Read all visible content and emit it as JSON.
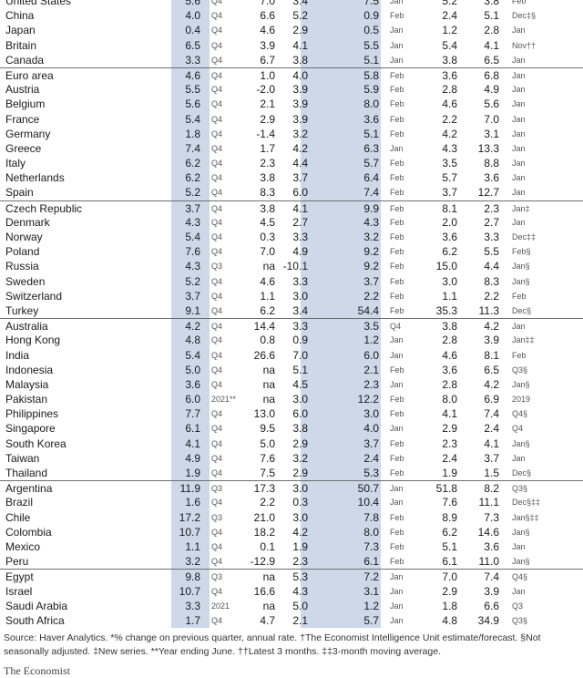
{
  "rows": [
    {
      "country": "United States",
      "v1": "5.6",
      "p1": "Q4",
      "v2": "7.0",
      "v3": "3.4",
      "v4": "7.5",
      "p2": "Jan",
      "v5": "5.2",
      "v6": "3.8",
      "p3": "Feb",
      "sep": false
    },
    {
      "country": "China",
      "v1": "4.0",
      "p1": "Q4",
      "v2": "6.6",
      "v3": "5.2",
      "v4": "0.9",
      "p2": "Feb",
      "v5": "2.4",
      "v6": "5.1",
      "p3": "Dec‡§",
      "sep": false
    },
    {
      "country": "Japan",
      "v1": "0.4",
      "p1": "Q4",
      "v2": "4.6",
      "v3": "2.9",
      "v4": "0.5",
      "p2": "Jan",
      "v5": "1.2",
      "v6": "2.8",
      "p3": "Jan",
      "sep": false
    },
    {
      "country": "Britain",
      "v1": "6.5",
      "p1": "Q4",
      "v2": "3.9",
      "v3": "4.1",
      "v4": "5.5",
      "p2": "Jan",
      "v5": "5.4",
      "v6": "4.1",
      "p3": "Nov††",
      "sep": false
    },
    {
      "country": "Canada",
      "v1": "3.3",
      "p1": "Q4",
      "v2": "6.7",
      "v3": "3.8",
      "v4": "5.1",
      "p2": "Jan",
      "v5": "3.8",
      "v6": "6.5",
      "p3": "Jan",
      "sep": false
    },
    {
      "country": "Euro area",
      "v1": "4.6",
      "p1": "Q4",
      "v2": "1.0",
      "v3": "4.0",
      "v4": "5.8",
      "p2": "Feb",
      "v5": "3.6",
      "v6": "6.8",
      "p3": "Jan",
      "sep": true
    },
    {
      "country": "Austria",
      "v1": "5.5",
      "p1": "Q4",
      "v2": "-2.0",
      "v3": "3.9",
      "v4": "5.9",
      "p2": "Feb",
      "v5": "2.8",
      "v6": "4.9",
      "p3": "Jan",
      "sep": false
    },
    {
      "country": "Belgium",
      "v1": "5.6",
      "p1": "Q4",
      "v2": "2.1",
      "v3": "3.9",
      "v4": "8.0",
      "p2": "Feb",
      "v5": "4.6",
      "v6": "5.6",
      "p3": "Jan",
      "sep": false
    },
    {
      "country": "France",
      "v1": "5.4",
      "p1": "Q4",
      "v2": "2.9",
      "v3": "3.9",
      "v4": "3.6",
      "p2": "Feb",
      "v5": "2.2",
      "v6": "7.0",
      "p3": "Jan",
      "sep": false
    },
    {
      "country": "Germany",
      "v1": "1.8",
      "p1": "Q4",
      "v2": "-1.4",
      "v3": "3.2",
      "v4": "5.1",
      "p2": "Feb",
      "v5": "4.2",
      "v6": "3.1",
      "p3": "Jan",
      "sep": false
    },
    {
      "country": "Greece",
      "v1": "7.4",
      "p1": "Q4",
      "v2": "1.7",
      "v3": "4.2",
      "v4": "6.3",
      "p2": "Jan",
      "v5": "4.3",
      "v6": "13.3",
      "p3": "Jan",
      "sep": false
    },
    {
      "country": "Italy",
      "v1": "6.2",
      "p1": "Q4",
      "v2": "2.3",
      "v3": "4.4",
      "v4": "5.7",
      "p2": "Feb",
      "v5": "3.5",
      "v6": "8.8",
      "p3": "Jan",
      "sep": false
    },
    {
      "country": "Netherlands",
      "v1": "6.2",
      "p1": "Q4",
      "v2": "3.8",
      "v3": "3.7",
      "v4": "6.4",
      "p2": "Feb",
      "v5": "5.7",
      "v6": "3.6",
      "p3": "Jan",
      "sep": false
    },
    {
      "country": "Spain",
      "v1": "5.2",
      "p1": "Q4",
      "v2": "8.3",
      "v3": "6.0",
      "v4": "7.4",
      "p2": "Feb",
      "v5": "3.7",
      "v6": "12.7",
      "p3": "Jan",
      "sep": false
    },
    {
      "country": "Czech Republic",
      "v1": "3.7",
      "p1": "Q4",
      "v2": "3.8",
      "v3": "4.1",
      "v4": "9.9",
      "p2": "Feb",
      "v5": "8.1",
      "v6": "2.3",
      "p3": "Jan‡",
      "sep": true
    },
    {
      "country": "Denmark",
      "v1": "4.3",
      "p1": "Q4",
      "v2": "4.5",
      "v3": "2.7",
      "v4": "4.3",
      "p2": "Feb",
      "v5": "2.0",
      "v6": "2.7",
      "p3": "Jan",
      "sep": false
    },
    {
      "country": "Norway",
      "v1": "5.4",
      "p1": "Q4",
      "v2": "0.3",
      "v3": "3.3",
      "v4": "3.2",
      "p2": "Feb",
      "v5": "3.6",
      "v6": "3.3",
      "p3": "Dec‡‡",
      "sep": false
    },
    {
      "country": "Poland",
      "v1": "7.6",
      "p1": "Q4",
      "v2": "7.0",
      "v3": "4.9",
      "v4": "9.2",
      "p2": "Feb",
      "v5": "6.2",
      "v6": "5.5",
      "p3": "Feb§",
      "sep": false
    },
    {
      "country": "Russia",
      "v1": "4.3",
      "p1": "Q3",
      "v2": "na",
      "v3": "-10.1",
      "v4": "9.2",
      "p2": "Feb",
      "v5": "15.0",
      "v6": "4.4",
      "p3": "Jan§",
      "sep": false
    },
    {
      "country": "Sweden",
      "v1": "5.2",
      "p1": "Q4",
      "v2": "4.6",
      "v3": "3.3",
      "v4": "3.7",
      "p2": "Feb",
      "v5": "3.0",
      "v6": "8.3",
      "p3": "Jan§",
      "sep": false
    },
    {
      "country": "Switzerland",
      "v1": "3.7",
      "p1": "Q4",
      "v2": "1.1",
      "v3": "3.0",
      "v4": "2.2",
      "p2": "Feb",
      "v5": "1.1",
      "v6": "2.2",
      "p3": "Feb",
      "sep": false
    },
    {
      "country": "Turkey",
      "v1": "9.1",
      "p1": "Q4",
      "v2": "6.2",
      "v3": "3.4",
      "v4": "54.4",
      "p2": "Feb",
      "v5": "35.3",
      "v6": "11.3",
      "p3": "Dec§",
      "sep": false
    },
    {
      "country": "Australia",
      "v1": "4.2",
      "p1": "Q4",
      "v2": "14.4",
      "v3": "3.3",
      "v4": "3.5",
      "p2": "Q4",
      "v5": "3.8",
      "v6": "4.2",
      "p3": "Jan",
      "sep": true
    },
    {
      "country": "Hong Kong",
      "v1": "4.8",
      "p1": "Q4",
      "v2": "0.8",
      "v3": "0.9",
      "v4": "1.2",
      "p2": "Jan",
      "v5": "2.8",
      "v6": "3.9",
      "p3": "Jan‡‡",
      "sep": false
    },
    {
      "country": "India",
      "v1": "5.4",
      "p1": "Q4",
      "v2": "26.6",
      "v3": "7.0",
      "v4": "6.0",
      "p2": "Jan",
      "v5": "4.6",
      "v6": "8.1",
      "p3": "Feb",
      "sep": false
    },
    {
      "country": "Indonesia",
      "v1": "5.0",
      "p1": "Q4",
      "v2": "na",
      "v3": "5.1",
      "v4": "2.1",
      "p2": "Feb",
      "v5": "3.6",
      "v6": "6.5",
      "p3": "Q3§",
      "sep": false
    },
    {
      "country": "Malaysia",
      "v1": "3.6",
      "p1": "Q4",
      "v2": "na",
      "v3": "4.5",
      "v4": "2.3",
      "p2": "Jan",
      "v5": "2.8",
      "v6": "4.2",
      "p3": "Jan§",
      "sep": false
    },
    {
      "country": "Pakistan",
      "v1": "6.0",
      "p1": "2021**",
      "v2": "na",
      "v3": "3.0",
      "v4": "12.2",
      "p2": "Feb",
      "v5": "8.0",
      "v6": "6.9",
      "p3": "2019",
      "sep": false
    },
    {
      "country": "Philippines",
      "v1": "7.7",
      "p1": "Q4",
      "v2": "13.0",
      "v3": "6.0",
      "v4": "3.0",
      "p2": "Feb",
      "v5": "4.1",
      "v6": "7.4",
      "p3": "Q4§",
      "sep": false
    },
    {
      "country": "Singapore",
      "v1": "6.1",
      "p1": "Q4",
      "v2": "9.5",
      "v3": "3.8",
      "v4": "4.0",
      "p2": "Jan",
      "v5": "2.9",
      "v6": "2.4",
      "p3": "Q4",
      "sep": false
    },
    {
      "country": "South Korea",
      "v1": "4.1",
      "p1": "Q4",
      "v2": "5.0",
      "v3": "2.9",
      "v4": "3.7",
      "p2": "Feb",
      "v5": "2.3",
      "v6": "4.1",
      "p3": "Jan§",
      "sep": false
    },
    {
      "country": "Taiwan",
      "v1": "4.9",
      "p1": "Q4",
      "v2": "7.6",
      "v3": "3.2",
      "v4": "2.4",
      "p2": "Feb",
      "v5": "2.4",
      "v6": "3.7",
      "p3": "Jan",
      "sep": false
    },
    {
      "country": "Thailand",
      "v1": "1.9",
      "p1": "Q4",
      "v2": "7.5",
      "v3": "2.9",
      "v4": "5.3",
      "p2": "Feb",
      "v5": "1.9",
      "v6": "1.5",
      "p3": "Dec§",
      "sep": false
    },
    {
      "country": "Argentina",
      "v1": "11.9",
      "p1": "Q3",
      "v2": "17.3",
      "v3": "3.0",
      "v4": "50.7",
      "p2": "Jan",
      "v5": "51.8",
      "v6": "8.2",
      "p3": "Q3§",
      "sep": true
    },
    {
      "country": "Brazil",
      "v1": "1.6",
      "p1": "Q4",
      "v2": "2.2",
      "v3": "0.3",
      "v4": "10.4",
      "p2": "Jan",
      "v5": "7.6",
      "v6": "11.1",
      "p3": "Dec§‡‡",
      "sep": false
    },
    {
      "country": "Chile",
      "v1": "17.2",
      "p1": "Q3",
      "v2": "21.0",
      "v3": "3.0",
      "v4": "7.8",
      "p2": "Feb",
      "v5": "8.9",
      "v6": "7.3",
      "p3": "Jan§‡‡",
      "sep": false
    },
    {
      "country": "Colombia",
      "v1": "10.7",
      "p1": "Q4",
      "v2": "18.2",
      "v3": "4.2",
      "v4": "8.0",
      "p2": "Feb",
      "v5": "6.2",
      "v6": "14.6",
      "p3": "Jan§",
      "sep": false
    },
    {
      "country": "Mexico",
      "v1": "1.1",
      "p1": "Q4",
      "v2": "0.1",
      "v3": "1.9",
      "v4": "7.3",
      "p2": "Feb",
      "v5": "5.1",
      "v6": "3.6",
      "p3": "Jan",
      "sep": false
    },
    {
      "country": "Peru",
      "v1": "3.2",
      "p1": "Q4",
      "v2": "-12.9",
      "v3": "2.3",
      "v4": "6.1",
      "p2": "Feb",
      "v5": "6.1",
      "v6": "11.0",
      "p3": "Jan§",
      "sep": false
    },
    {
      "country": "Egypt",
      "v1": "9.8",
      "p1": "Q3",
      "v2": "na",
      "v3": "5.3",
      "v4": "7.2",
      "p2": "Jan",
      "v5": "7.0",
      "v6": "7.4",
      "p3": "Q4§",
      "sep": true
    },
    {
      "country": "Israel",
      "v1": "10.7",
      "p1": "Q4",
      "v2": "16.6",
      "v3": "4.3",
      "v4": "3.1",
      "p2": "Jan",
      "v5": "2.9",
      "v6": "3.9",
      "p3": "Jan",
      "sep": false
    },
    {
      "country": "Saudi Arabia",
      "v1": "3.3",
      "p1": "2021",
      "v2": "na",
      "v3": "5.0",
      "v4": "1.2",
      "p2": "Jan",
      "v5": "1.8",
      "v6": "6.6",
      "p3": "Q3",
      "sep": false
    },
    {
      "country": "South Africa",
      "v1": "1.7",
      "p1": "Q4",
      "v2": "4.7",
      "v3": "2.1",
      "v4": "5.7",
      "p2": "Jan",
      "v5": "4.8",
      "v6": "34.9",
      "p3": "Q3§",
      "sep": false
    }
  ],
  "footer": {
    "source": "Source: Haver Analytics. *% change on previous quarter, annual rate. †The Economist Intelligence Unit estimate/forecast. §Not seasonally adjusted. ‡New series. **Year ending June. ††Latest 3 months. ‡‡3-month moving average."
  },
  "brand": {
    "logo_text": "The Economist"
  },
  "colors": {
    "shade": "#cdd8e8",
    "separator": "#6f6f6f"
  }
}
